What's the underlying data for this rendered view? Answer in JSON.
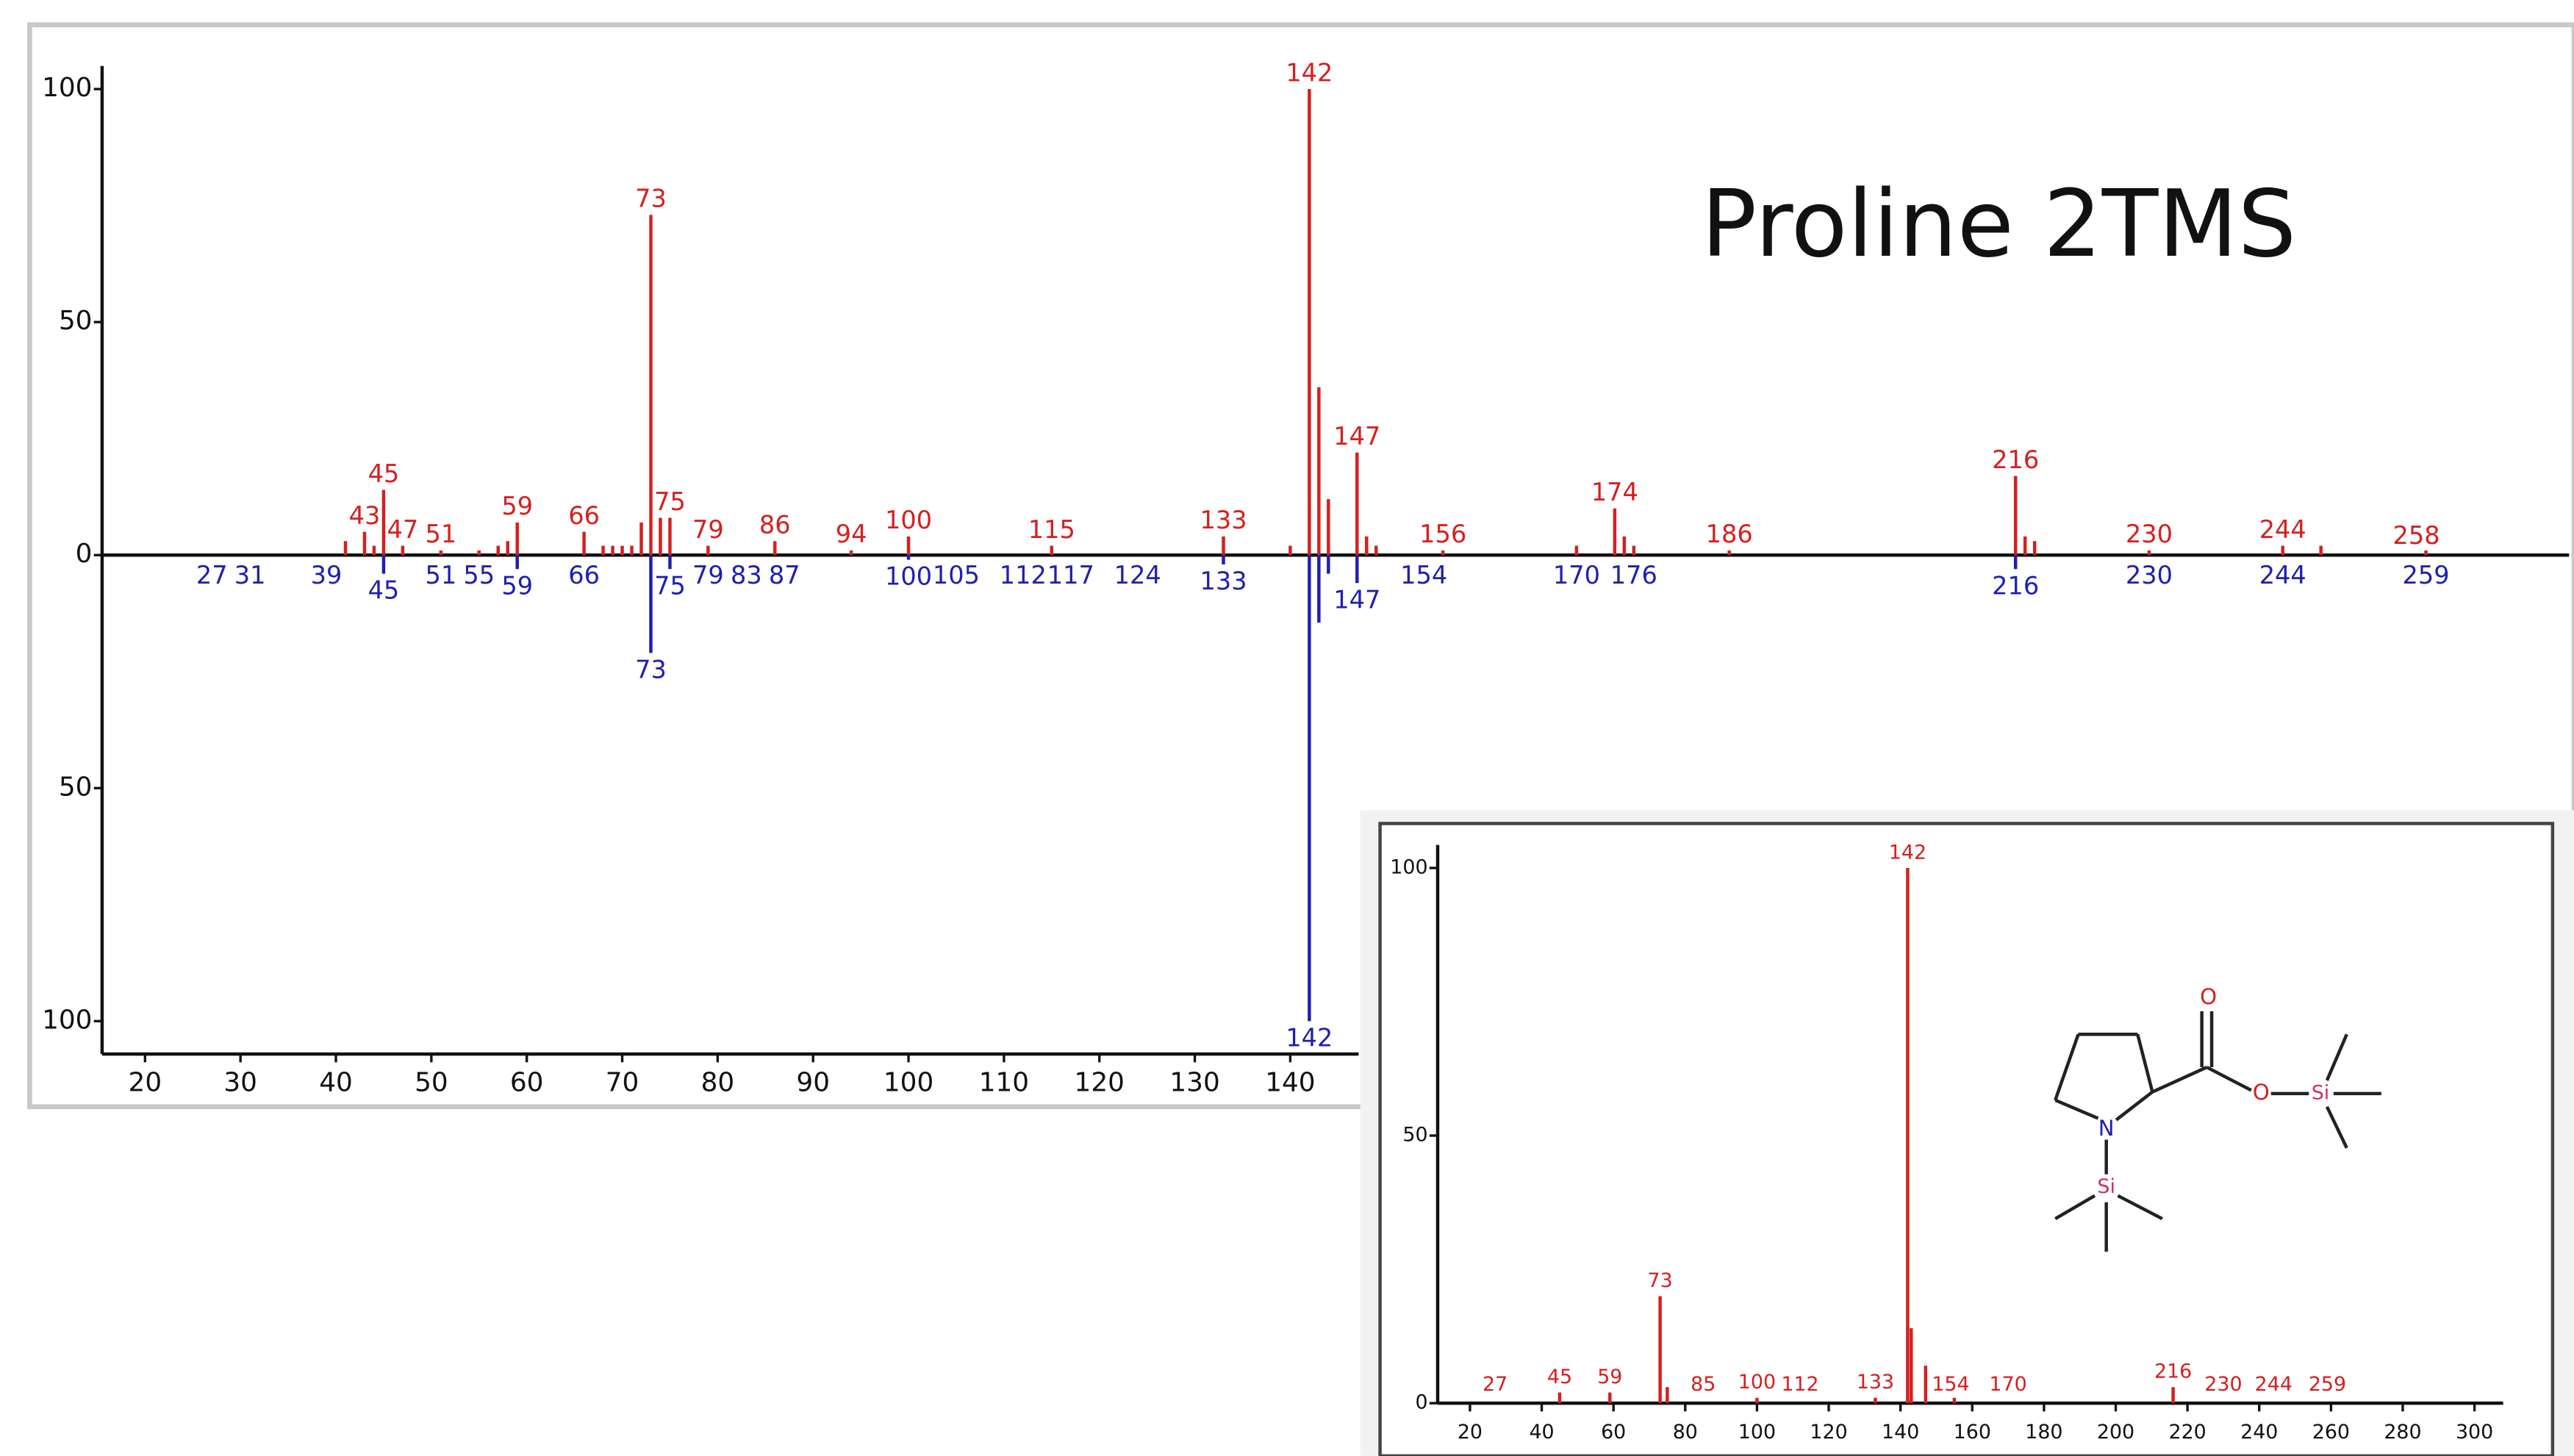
{
  "chart_data": [
    {
      "type": "mirror",
      "title": "Proline 2TMS",
      "xlim": [
        15.5,
        274
      ],
      "xticks": [
        20,
        30,
        40,
        50,
        60,
        70,
        80,
        90,
        100,
        110,
        120,
        130,
        140
      ],
      "ylim": [
        -100,
        100
      ],
      "yticks": [
        {
          "value": -100,
          "label": "100"
        },
        {
          "value": -50,
          "label": "50"
        },
        0,
        50,
        100
      ],
      "series": [
        {
          "color": "#d42020",
          "direction": "up",
          "x": [
            41,
            43,
            44,
            45,
            47,
            51,
            55,
            57,
            58,
            59,
            66,
            68,
            69,
            70,
            71,
            72,
            73,
            74,
            75,
            79,
            86,
            94,
            100,
            115,
            133,
            140,
            142,
            143,
            144,
            147,
            148,
            149,
            156,
            170,
            174,
            175,
            176,
            186,
            216,
            217,
            218,
            230,
            244,
            248,
            259
          ],
          "values": [
            3,
            5,
            2,
            14,
            2,
            1,
            1,
            2,
            3,
            7,
            5,
            2,
            2,
            2,
            2,
            7,
            73,
            8,
            8,
            2,
            3,
            1,
            4,
            2,
            4,
            2,
            100,
            36,
            12,
            22,
            4,
            2,
            1,
            2,
            10,
            4,
            2,
            1,
            17,
            4,
            3,
            1,
            2,
            2,
            1
          ],
          "labels": [
            43,
            45,
            47,
            51,
            59,
            66,
            73,
            75,
            79,
            86,
            94,
            100,
            115,
            133,
            142,
            147,
            156,
            174,
            186,
            216,
            230,
            244,
            258
          ]
        },
        {
          "color": "#1f1fb0",
          "direction": "down",
          "x": [
            45,
            59,
            73,
            75,
            100,
            133,
            142,
            143,
            144,
            147,
            216
          ],
          "values": [
            4,
            3,
            21,
            3,
            1,
            2,
            100,
            14.5,
            4,
            6,
            3
          ],
          "labels": [
            27,
            31,
            39,
            45,
            51,
            55,
            59,
            66,
            73,
            75,
            79,
            83,
            87,
            100,
            105,
            112,
            117,
            124,
            133,
            142,
            147,
            154,
            170,
            176,
            216,
            230,
            244,
            259
          ]
        }
      ]
    },
    {
      "type": "stem",
      "xlim": [
        11,
        308
      ],
      "xticks": [
        20,
        40,
        60,
        80,
        100,
        120,
        140,
        160,
        180,
        200,
        220,
        240,
        260,
        280,
        300
      ],
      "ylim": [
        0,
        100
      ],
      "yticks": [
        0,
        50,
        100
      ],
      "series": [
        {
          "color": "#d42020",
          "x": [
            45,
            59,
            73,
            75,
            100,
            133,
            142,
            143,
            147,
            155,
            216
          ],
          "values": [
            2,
            2,
            20,
            3,
            1,
            1,
            100,
            14,
            7,
            1,
            3
          ],
          "labels": [
            27,
            45,
            59,
            73,
            85,
            100,
            112,
            133,
            142,
            154,
            170,
            216,
            230,
            244,
            259
          ]
        }
      ],
      "structure_labels": [
        "O",
        "O",
        "Si",
        "N",
        "Si"
      ]
    }
  ]
}
